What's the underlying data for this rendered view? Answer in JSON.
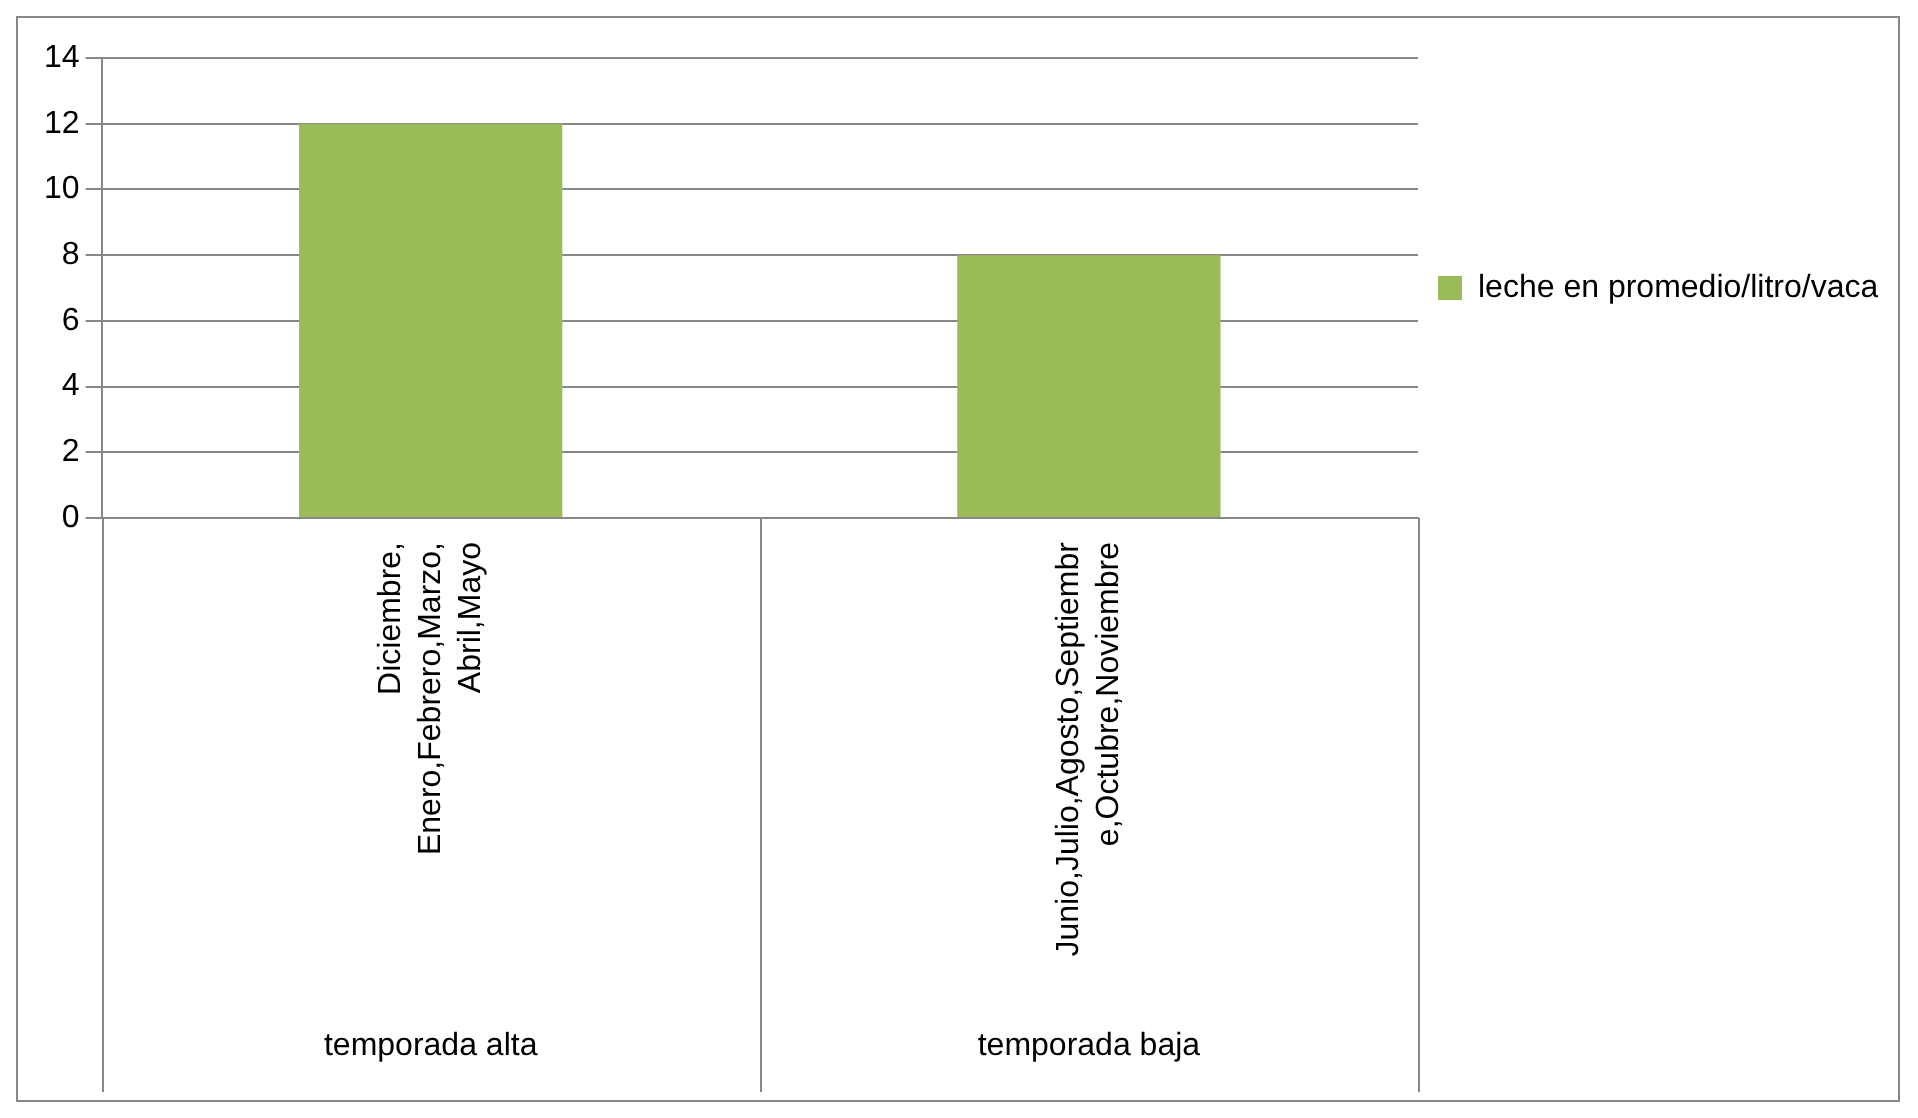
{
  "chart_data": {
    "type": "bar",
    "categories": [
      "Diciembre, Enero,Febrero,Marzo, Abril,Mayo",
      "Junio,Julio,Agosto,Septiembre,Octubre,Noviembre"
    ],
    "series": [
      {
        "name": "leche en promedio/litro/vaca",
        "color": "#9bbb59",
        "values": [
          12,
          8
        ]
      }
    ],
    "ylim": [
      0,
      14
    ],
    "yticks": [
      0,
      2,
      4,
      6,
      8,
      10,
      12,
      14
    ],
    "grid": "y",
    "legend": "right",
    "annotations": [
      "temporada alta",
      "temporada baja"
    ]
  }
}
